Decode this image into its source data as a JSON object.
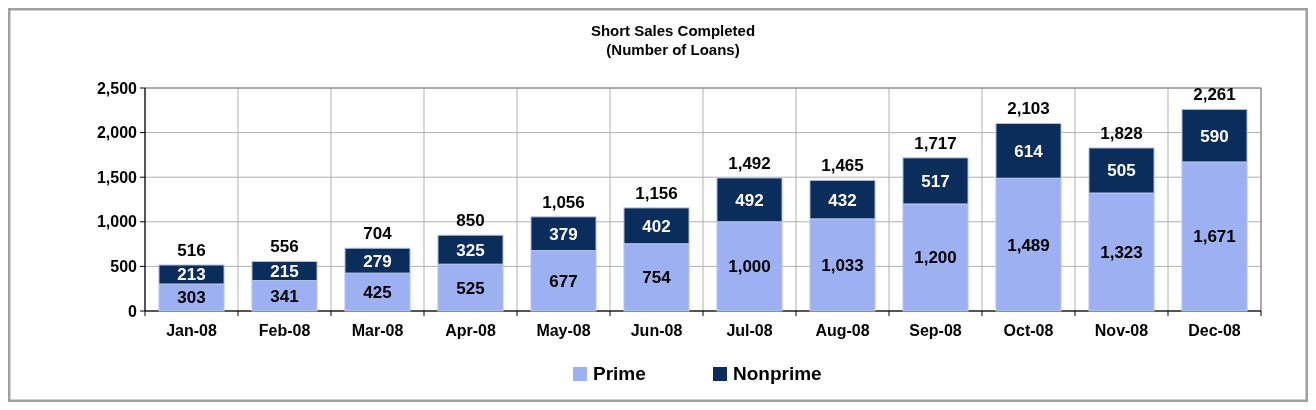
{
  "chart_data": {
    "type": "bar",
    "title": "Short Sales Completed",
    "subtitle": "(Number of Loans)",
    "categories": [
      "Jan-08",
      "Feb-08",
      "Mar-08",
      "Apr-08",
      "May-08",
      "Jun-08",
      "Jul-08",
      "Aug-08",
      "Sep-08",
      "Oct-08",
      "Nov-08",
      "Dec-08"
    ],
    "series": [
      {
        "name": "Prime",
        "color": "#9db0f2",
        "values": [
          303,
          341,
          425,
          525,
          677,
          754,
          1000,
          1033,
          1200,
          1489,
          1323,
          1671
        ],
        "value_labels": [
          "303",
          "341",
          "425",
          "525",
          "677",
          "754",
          "1,000",
          "1,033",
          "1,200",
          "1,489",
          "1,323",
          "1,671"
        ]
      },
      {
        "name": "Nonprime",
        "color": "#0b2d5c",
        "values": [
          213,
          215,
          279,
          325,
          379,
          402,
          492,
          432,
          517,
          614,
          505,
          590
        ],
        "value_labels": [
          "213",
          "215",
          "279",
          "325",
          "379",
          "402",
          "492",
          "432",
          "517",
          "614",
          "505",
          "590"
        ]
      }
    ],
    "stacked": true,
    "totals": [
      "516",
      "556",
      "704",
      "850",
      "1,056",
      "1,156",
      "1,492",
      "1,465",
      "1,717",
      "2,103",
      "1,828",
      "2,261"
    ],
    "ylim": [
      0,
      2500
    ],
    "yticks": [
      {
        "value": 0,
        "label": "0"
      },
      {
        "value": 500,
        "label": "500"
      },
      {
        "value": 1000,
        "label": "1,000"
      },
      {
        "value": 1500,
        "label": "1,500"
      },
      {
        "value": 2000,
        "label": "2,000"
      },
      {
        "value": 2500,
        "label": "2,500"
      }
    ],
    "grid": true,
    "legend": "bottom"
  }
}
